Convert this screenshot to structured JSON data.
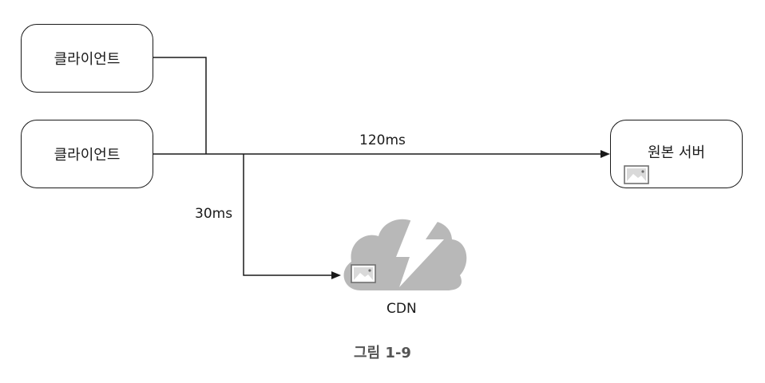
{
  "nodes": {
    "client_top": "클라이언트",
    "client_bottom": "클라이언트",
    "origin_server": "원본 서버"
  },
  "edges": {
    "origin_latency": "120ms",
    "cdn_latency": "30ms"
  },
  "cdn": {
    "label": "CDN"
  },
  "caption": "그림 1-9",
  "colors": {
    "line": "#1a1a1a",
    "cloud": "#b8b8b8",
    "icon": "#8a8a8a"
  }
}
